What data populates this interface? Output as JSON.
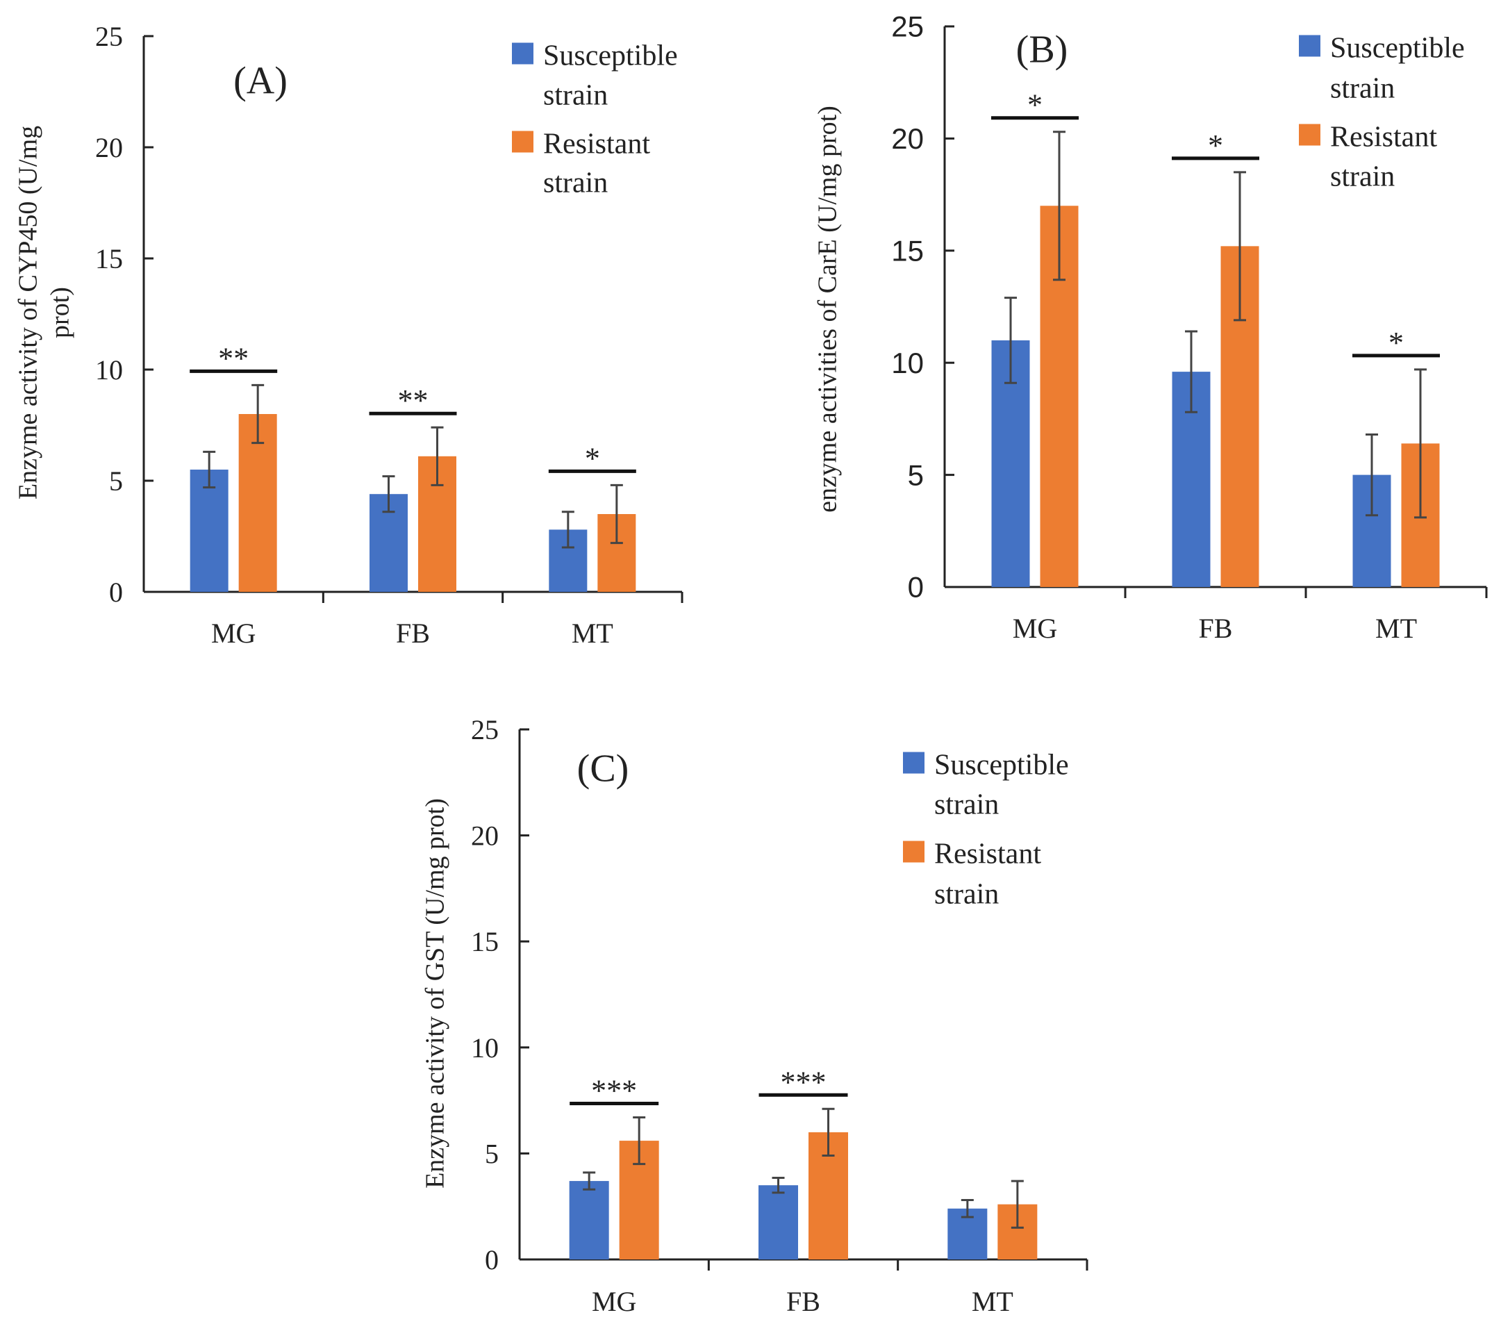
{
  "chart_data": [
    {
      "type": "bar",
      "panel_label": "(A)",
      "ylabel_lines": [
        "Enzyme activity of CYP450 (U/mg",
        "prot)"
      ],
      "categories": [
        "MG",
        "FB",
        "MT"
      ],
      "ylim": [
        0,
        25
      ],
      "yticks": [
        "0",
        "5",
        "10",
        "15",
        "20",
        "25"
      ],
      "series": [
        {
          "name_lines": [
            "Susceptible",
            "strain"
          ],
          "color": "#4472C4",
          "values": [
            5.5,
            4.4,
            2.8
          ],
          "errors": [
            0.8,
            0.8,
            0.8
          ]
        },
        {
          "name_lines": [
            "Resistant",
            "strain"
          ],
          "color": "#ED7D31",
          "values": [
            8.0,
            6.1,
            3.5
          ],
          "errors": [
            1.3,
            1.3,
            1.3
          ]
        }
      ],
      "significance": [
        "**",
        "**",
        "*"
      ],
      "legend": "top-right",
      "grid": false
    },
    {
      "type": "bar",
      "panel_label": "(B)",
      "ylabel_lines": [
        "enzyme activities of CarE (U/mg prot)"
      ],
      "categories": [
        "MG",
        "FB",
        "MT"
      ],
      "ylim": [
        0,
        25
      ],
      "yticks": [
        "0",
        "5",
        "10",
        "15",
        "20",
        "25"
      ],
      "series": [
        {
          "name_lines": [
            "Susceptible",
            "strain"
          ],
          "color": "#4472C4",
          "values": [
            11.0,
            9.6,
            5.0
          ],
          "errors": [
            1.9,
            1.8,
            1.8
          ]
        },
        {
          "name_lines": [
            "Resistant",
            "strain"
          ],
          "color": "#ED7D31",
          "values": [
            17.0,
            15.2,
            6.4
          ],
          "errors": [
            3.3,
            3.3,
            3.3
          ]
        }
      ],
      "significance": [
        "*",
        "*",
        "*"
      ],
      "legend": "top-right",
      "grid": false
    },
    {
      "type": "bar",
      "panel_label": "(C)",
      "ylabel_lines": [
        "Enzyme activity of GST (U/mg prot)"
      ],
      "categories": [
        "MG",
        "FB",
        "MT"
      ],
      "ylim": [
        0,
        25
      ],
      "yticks": [
        "0",
        "5",
        "10",
        "15",
        "20",
        "25"
      ],
      "series": [
        {
          "name_lines": [
            "Susceptible",
            "strain"
          ],
          "color": "#4472C4",
          "values": [
            3.7,
            3.5,
            2.4
          ],
          "errors": [
            0.4,
            0.35,
            0.4
          ]
        },
        {
          "name_lines": [
            "Resistant",
            "strain"
          ],
          "color": "#ED7D31",
          "values": [
            5.6,
            6.0,
            2.6
          ],
          "errors": [
            1.1,
            1.1,
            1.1
          ]
        }
      ],
      "significance": [
        "***",
        "***",
        ""
      ],
      "legend": "top-right",
      "grid": false
    }
  ]
}
